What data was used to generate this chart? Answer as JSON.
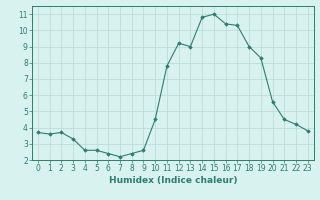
{
  "x": [
    0,
    1,
    2,
    3,
    4,
    5,
    6,
    7,
    8,
    9,
    10,
    11,
    12,
    13,
    14,
    15,
    16,
    17,
    18,
    19,
    20,
    21,
    22,
    23
  ],
  "y": [
    3.7,
    3.6,
    3.7,
    3.3,
    2.6,
    2.6,
    2.4,
    2.2,
    2.4,
    2.6,
    4.5,
    7.8,
    9.2,
    9.0,
    10.8,
    11.0,
    10.4,
    10.3,
    9.0,
    8.3,
    5.6,
    4.5,
    4.2,
    3.8
  ],
  "line_color": "#2e7d6e",
  "marker": "D",
  "marker_size": 1.8,
  "bg_color": "#d8f2f0",
  "grid_color": "#b8d8d4",
  "xlabel": "Humidex (Indice chaleur)",
  "ylim": [
    2,
    11.5
  ],
  "xlim": [
    -0.5,
    23.5
  ],
  "yticks": [
    2,
    3,
    4,
    5,
    6,
    7,
    8,
    9,
    10,
    11
  ],
  "xticks": [
    0,
    1,
    2,
    3,
    4,
    5,
    6,
    7,
    8,
    9,
    10,
    11,
    12,
    13,
    14,
    15,
    16,
    17,
    18,
    19,
    20,
    21,
    22,
    23
  ],
  "tick_color": "#2e7d6e",
  "label_fontsize": 5.5,
  "xlabel_fontsize": 6.5,
  "linewidth": 0.8
}
